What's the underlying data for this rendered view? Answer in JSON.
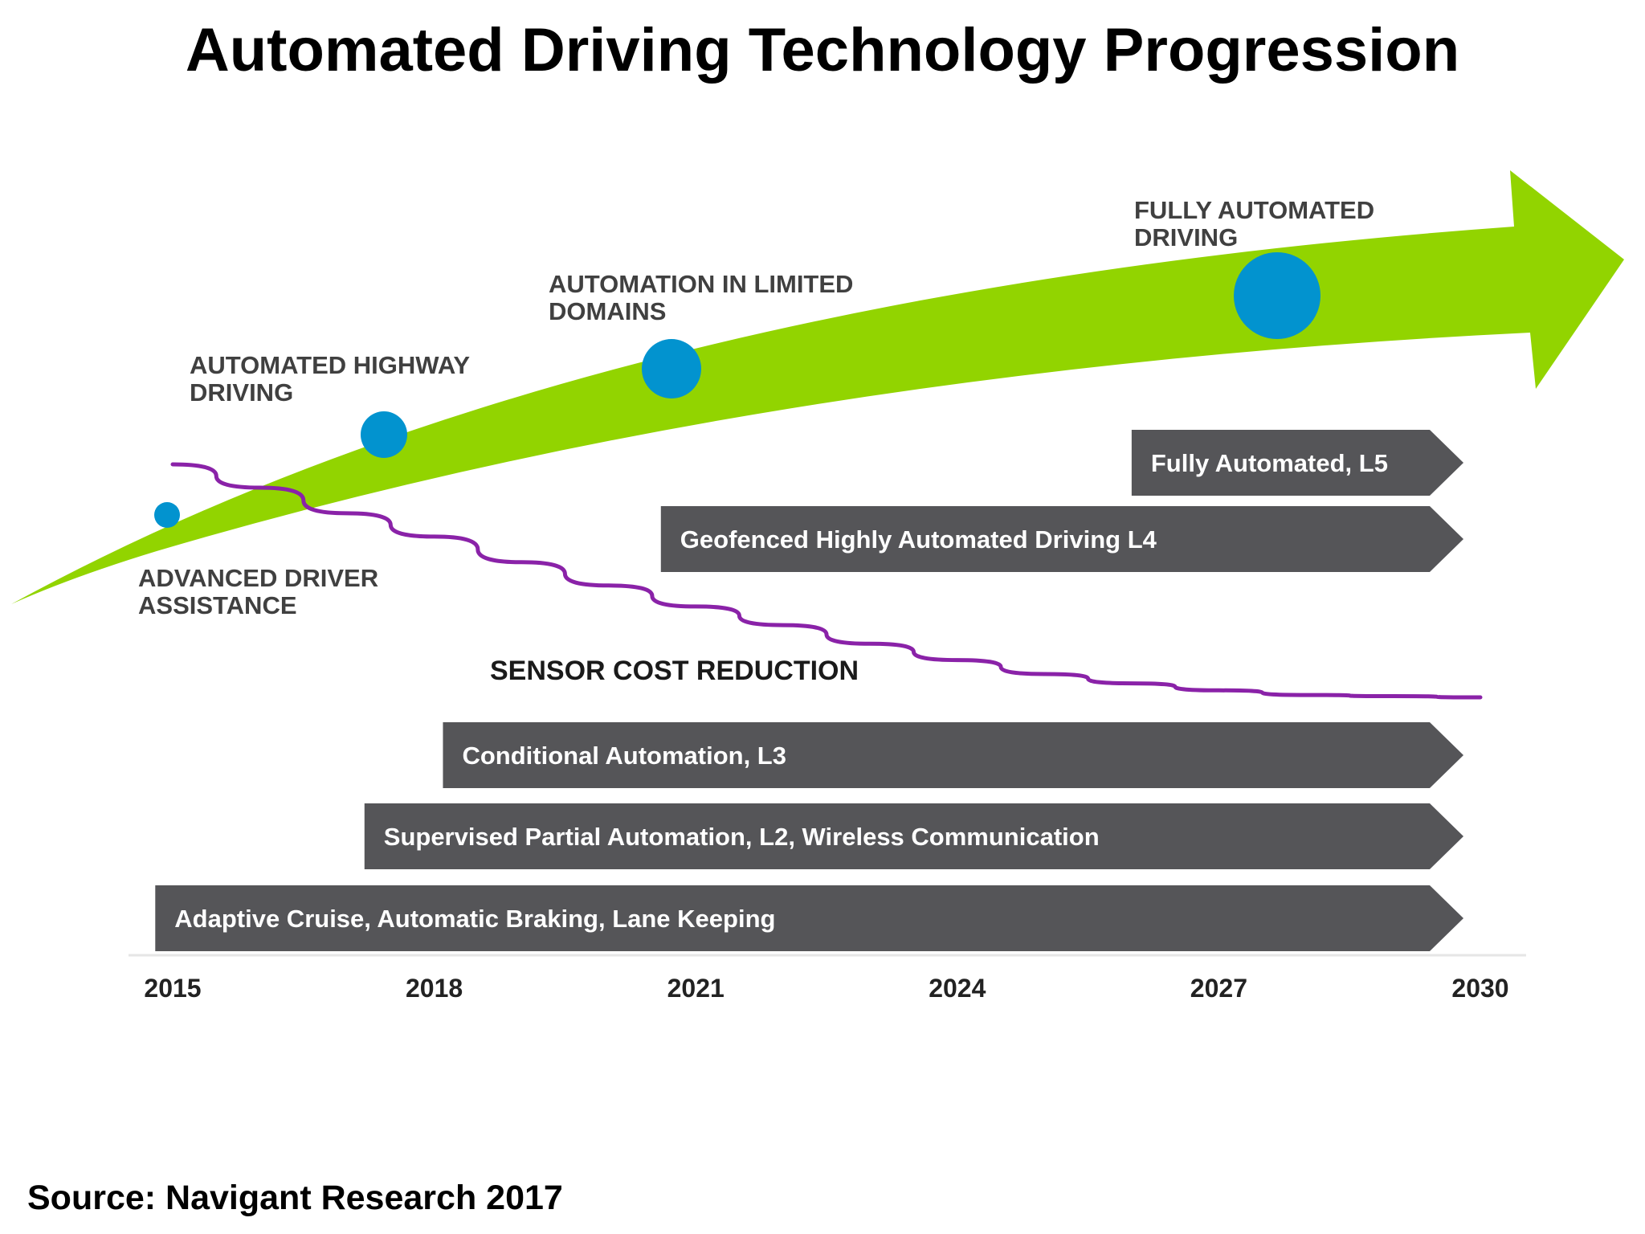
{
  "title": "Automated Driving Technology Progression",
  "source": "Source: Navigant Research 2017",
  "colors": {
    "arrow": "#92d400",
    "bar": "#555558",
    "bar_text": "#ffffff",
    "milestone_dot": "#0293cf",
    "cost_line": "#8a22a8",
    "milestone_text": "#404040",
    "axis_line": "#e6e6e6"
  },
  "chart_data": {
    "type": "timeline",
    "x_axis": {
      "ticks": [
        "2015",
        "2018",
        "2021",
        "2024",
        "2027",
        "2030"
      ],
      "range": [
        2015,
        2030
      ]
    },
    "bars": [
      {
        "label": "Fully Automated, L5",
        "start": 2026,
        "end": 2030
      },
      {
        "label": "Geofenced Highly Automated Driving L4",
        "start": 2020.6,
        "end": 2030
      },
      {
        "label": "Conditional Automation,  L3",
        "start": 2018.1,
        "end": 2030
      },
      {
        "label": "Supervised Partial Automation, L2, Wireless Communication",
        "start": 2017.2,
        "end": 2030
      },
      {
        "label": "Adaptive Cruise, Automatic Braking, Lane Keeping",
        "start": 2014.8,
        "end": 2030
      }
    ],
    "milestones": [
      {
        "lines": [
          "ADVANCED  DRIVER",
          "ASSISTANCE"
        ],
        "year": 2014.9,
        "size": "small"
      },
      {
        "lines": [
          "AUTOMATED  HIGHWAY",
          "DRIVING"
        ],
        "year": 2017.4,
        "size": "medium"
      },
      {
        "lines": [
          "AUTOMATION  IN LIMITED",
          "DOMAINS"
        ],
        "year": 2020.8,
        "size": "large"
      },
      {
        "lines": [
          "FULLY AUTOMATED",
          "DRIVING"
        ],
        "year": 2027.6,
        "size": "xlarge"
      }
    ],
    "sensor_cost": {
      "label": "SENSOR COST REDUCTION",
      "trend": "decreasing",
      "x": [
        2015,
        2016,
        2017,
        2018,
        2019,
        2020,
        2021,
        2022,
        2023,
        2024,
        2025,
        2026,
        2027,
        2028,
        2029,
        2030
      ],
      "y": [
        1.0,
        0.9,
        0.79,
        0.69,
        0.58,
        0.48,
        0.39,
        0.31,
        0.23,
        0.16,
        0.1,
        0.06,
        0.03,
        0.01,
        0.005,
        0.0
      ]
    }
  }
}
